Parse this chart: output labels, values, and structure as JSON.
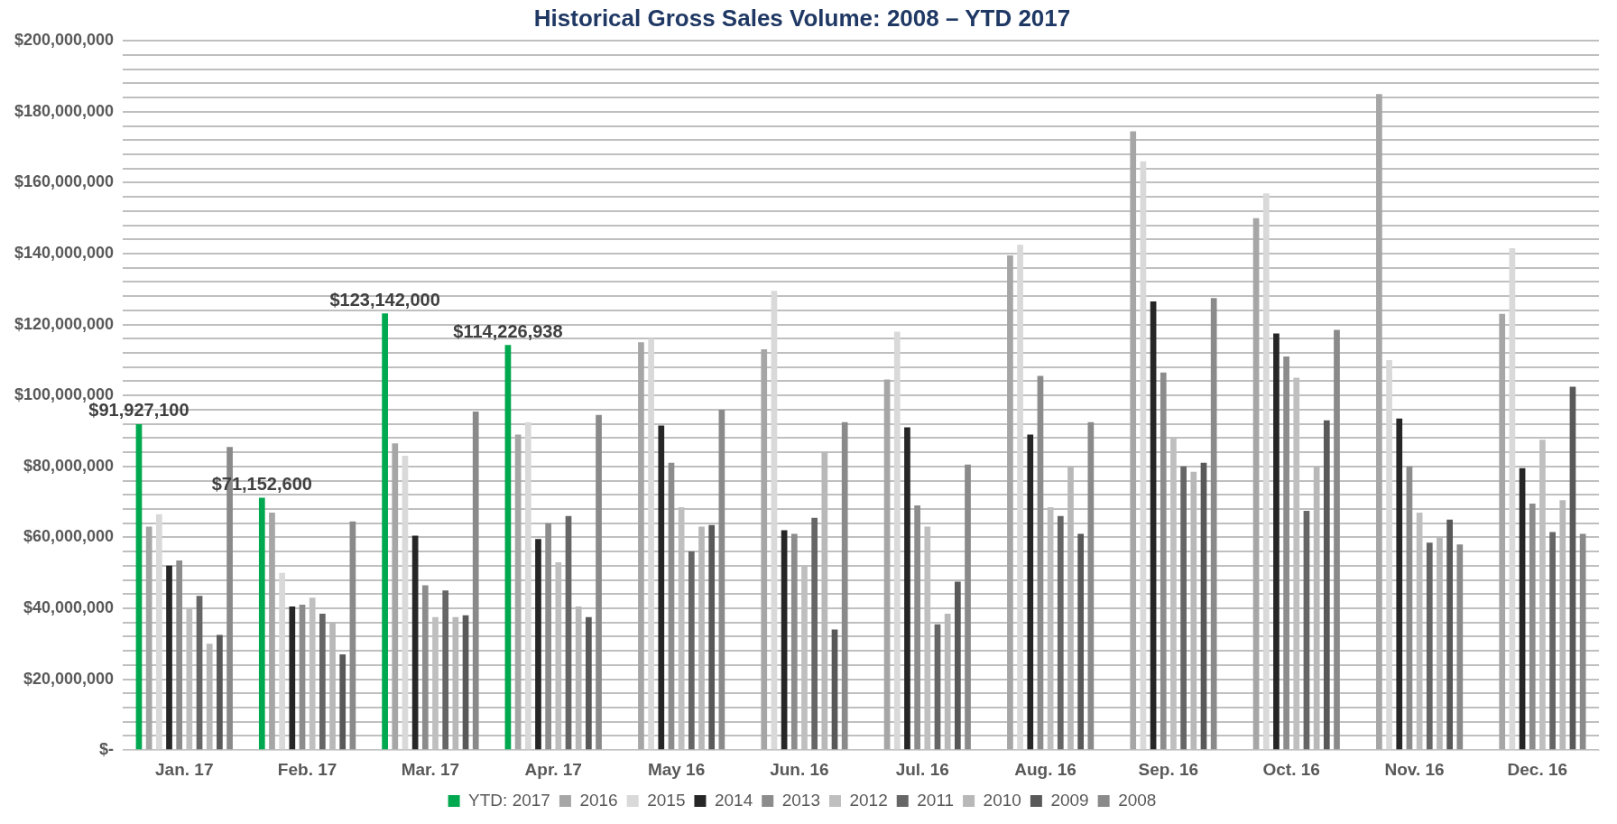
{
  "chart_data": {
    "type": "bar",
    "title": "Historical Gross Sales Volume: 2008 – YTD 2017",
    "categories": [
      "Jan. 17",
      "Feb. 17",
      "Mar. 17",
      "Apr. 17",
      "May 16",
      "Jun. 16",
      "Jul. 16",
      "Aug. 16",
      "Sep. 16",
      "Oct. 16",
      "Nov. 16",
      "Dec. 16"
    ],
    "series": [
      {
        "name": "YTD: 2017",
        "color": "#00a84f",
        "values": [
          91927100,
          71152600,
          123142000,
          114226938,
          null,
          null,
          null,
          null,
          null,
          null,
          null,
          null
        ],
        "value_labels": [
          "$91,927,100",
          "$71,152,600",
          "$123,142,000",
          "$114,226,938",
          null,
          null,
          null,
          null,
          null,
          null,
          null,
          null
        ]
      },
      {
        "name": "2016",
        "color": "#a6a6a6",
        "values": [
          63000000,
          67000000,
          86500000,
          89000000,
          115000000,
          113000000,
          104500000,
          139500000,
          174500000,
          150000000,
          185000000,
          123000000
        ]
      },
      {
        "name": "2015",
        "color": "#d9d9d9",
        "values": [
          66500000,
          50000000,
          83000000,
          92500000,
          116000000,
          129500000,
          118000000,
          142500000,
          166000000,
          157000000,
          110000000,
          141500000
        ]
      },
      {
        "name": "2014",
        "color": "#262626",
        "values": [
          52000000,
          40500000,
          60500000,
          59500000,
          91500000,
          62000000,
          91000000,
          89000000,
          126500000,
          117500000,
          93500000,
          79500000
        ]
      },
      {
        "name": "2013",
        "color": "#8c8c8c",
        "values": [
          53500000,
          41000000,
          46500000,
          64000000,
          81000000,
          61000000,
          69000000,
          105500000,
          106500000,
          111000000,
          80000000,
          69500000
        ]
      },
      {
        "name": "2012",
        "color": "#bfbfbf",
        "values": [
          40000000,
          43000000,
          37500000,
          53000000,
          68500000,
          52000000,
          63000000,
          68500000,
          88000000,
          105000000,
          67000000,
          87500000
        ]
      },
      {
        "name": "2011",
        "color": "#666666",
        "values": [
          43500000,
          38500000,
          45000000,
          66000000,
          56000000,
          65500000,
          35500000,
          66000000,
          80000000,
          67500000,
          58500000,
          61500000
        ]
      },
      {
        "name": "2010",
        "color": "#b8b8b8",
        "values": [
          30000000,
          36000000,
          37500000,
          40500000,
          63000000,
          84000000,
          38500000,
          80000000,
          78500000,
          80000000,
          60000000,
          70500000
        ]
      },
      {
        "name": "2009",
        "color": "#595959",
        "values": [
          32500000,
          27000000,
          38000000,
          37500000,
          63500000,
          34000000,
          47500000,
          61000000,
          81000000,
          93000000,
          65000000,
          102500000
        ]
      },
      {
        "name": "2008",
        "color": "#8a8a8a",
        "values": [
          85500000,
          64500000,
          95500000,
          94500000,
          96000000,
          92500000,
          80500000,
          92500000,
          127500000,
          118500000,
          58000000,
          61000000
        ]
      }
    ],
    "ylim": [
      0,
      200000000
    ],
    "yticks": [
      {
        "value": 0,
        "label": "$-"
      },
      {
        "value": 4000000,
        "label": null
      },
      {
        "value": 8000000,
        "label": null
      },
      {
        "value": 12000000,
        "label": null
      },
      {
        "value": 16000000,
        "label": null
      },
      {
        "value": 20000000,
        "label": "$20,000,000"
      },
      {
        "value": 24000000,
        "label": null
      },
      {
        "value": 28000000,
        "label": null
      },
      {
        "value": 32000000,
        "label": null
      },
      {
        "value": 36000000,
        "label": null
      },
      {
        "value": 40000000,
        "label": "$40,000,000"
      },
      {
        "value": 44000000,
        "label": null
      },
      {
        "value": 48000000,
        "label": null
      },
      {
        "value": 52000000,
        "label": null
      },
      {
        "value": 56000000,
        "label": null
      },
      {
        "value": 60000000,
        "label": "$60,000,000"
      },
      {
        "value": 64000000,
        "label": null
      },
      {
        "value": 68000000,
        "label": null
      },
      {
        "value": 72000000,
        "label": null
      },
      {
        "value": 76000000,
        "label": null
      },
      {
        "value": 80000000,
        "label": "$80,000,000"
      },
      {
        "value": 84000000,
        "label": null
      },
      {
        "value": 88000000,
        "label": null
      },
      {
        "value": 92000000,
        "label": null
      },
      {
        "value": 96000000,
        "label": null
      },
      {
        "value": 100000000,
        "label": "$100,000,000"
      },
      {
        "value": 104000000,
        "label": null
      },
      {
        "value": 108000000,
        "label": null
      },
      {
        "value": 112000000,
        "label": null
      },
      {
        "value": 116000000,
        "label": null
      },
      {
        "value": 120000000,
        "label": "$120,000,000"
      },
      {
        "value": 124000000,
        "label": null
      },
      {
        "value": 128000000,
        "label": null
      },
      {
        "value": 132000000,
        "label": null
      },
      {
        "value": 136000000,
        "label": null
      },
      {
        "value": 140000000,
        "label": "$140,000,000"
      },
      {
        "value": 144000000,
        "label": null
      },
      {
        "value": 148000000,
        "label": null
      },
      {
        "value": 152000000,
        "label": null
      },
      {
        "value": 156000000,
        "label": null
      },
      {
        "value": 160000000,
        "label": "$160,000,000"
      },
      {
        "value": 164000000,
        "label": null
      },
      {
        "value": 168000000,
        "label": null
      },
      {
        "value": 172000000,
        "label": null
      },
      {
        "value": 176000000,
        "label": null
      },
      {
        "value": 180000000,
        "label": "$180,000,000"
      },
      {
        "value": 184000000,
        "label": null
      },
      {
        "value": 188000000,
        "label": null
      },
      {
        "value": 192000000,
        "label": null
      },
      {
        "value": 196000000,
        "label": null
      },
      {
        "value": 200000000,
        "label": "$200,000,000"
      }
    ],
    "grid": "y",
    "legend": "bottom"
  }
}
